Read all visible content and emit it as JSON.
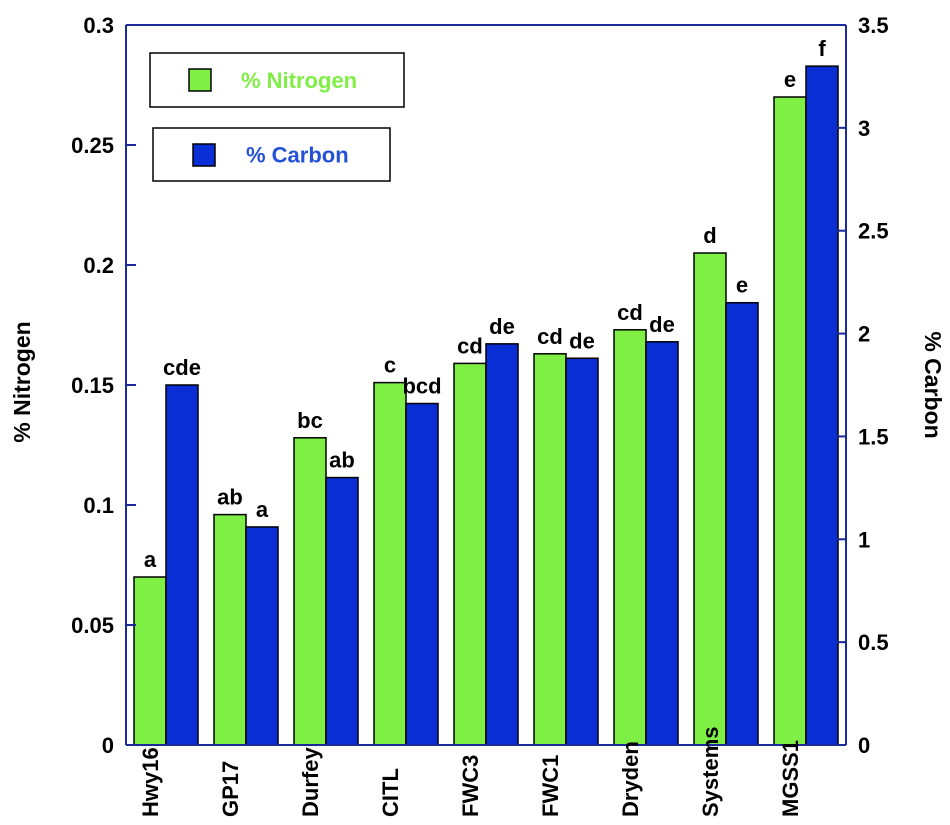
{
  "colors": {
    "nitrogen": "#7FEF45",
    "carbon": "#0A2ED6",
    "axis": "#1A2A9A",
    "nitrogen_text": "#7FEF45",
    "carbon_text": "#2450D8"
  },
  "chart_data": {
    "type": "bar",
    "categories": [
      "Hwy16",
      "GP17",
      "Durfey",
      "CITL",
      "FWC3",
      "FWC1",
      "Dryden",
      "Systems",
      "MGSS1"
    ],
    "series": [
      {
        "name": "% Nitrogen",
        "axis": "left",
        "color": "#7FEF45",
        "values": [
          0.07,
          0.096,
          0.128,
          0.151,
          0.159,
          0.163,
          0.173,
          0.205,
          0.27
        ],
        "letters": [
          "a",
          "ab",
          "bc",
          "c",
          "cd",
          "cd",
          "cd",
          "d",
          "e"
        ]
      },
      {
        "name": "% Carbon",
        "axis": "right",
        "color": "#0A2ED6",
        "values": [
          1.75,
          1.06,
          1.3,
          1.66,
          1.95,
          1.88,
          1.96,
          2.15,
          3.3
        ],
        "letters": [
          "cde",
          "a",
          "ab",
          "bcd",
          "de",
          "de",
          "de",
          "e",
          "f"
        ]
      }
    ],
    "ylabel_left": "% Nitrogen",
    "ylabel_right": "% Carbon",
    "ylim_left": [
      0,
      0.3
    ],
    "ylim_right": [
      0,
      3.5
    ],
    "yticks_left": [
      "0",
      "0.05",
      "0.1",
      "0.15",
      "0.2",
      "0.25",
      "0.3"
    ],
    "yticks_right": [
      "0",
      "0.5",
      "1",
      "1.5",
      "2",
      "2.5",
      "3",
      "3.5"
    ],
    "legend": [
      {
        "label": "% Nitrogen",
        "series": 0
      },
      {
        "label": "% Carbon",
        "series": 1
      }
    ],
    "legend_placement": "top-left",
    "grid": false
  }
}
